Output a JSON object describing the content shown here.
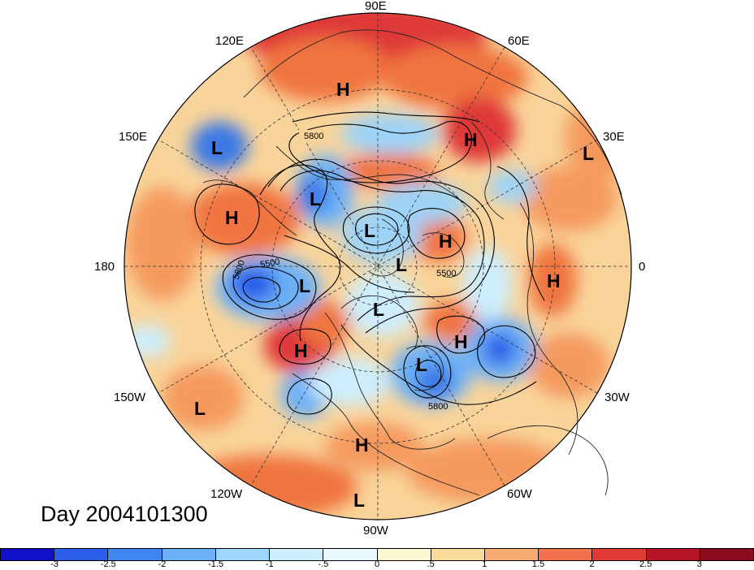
{
  "title": "Day 2004101300",
  "longitude_labels": {
    "lon_90e": "90E",
    "lon_60e": "60E",
    "lon_30e": "30E",
    "lon_0": "0",
    "lon_30w": "30W",
    "lon_60w": "60W",
    "lon_90w": "90W",
    "lon_120w": "120W",
    "lon_150w": "150W",
    "lon_180": "180",
    "lon_150e": "150E",
    "lon_120e": "120E"
  },
  "pressure_systems": {
    "h_siberia": "H",
    "l_japan": "L",
    "l_europe_east": "L",
    "h_ural": "H",
    "l_okhotsk": "L",
    "h_pacific_west": "H",
    "l_arctic_east": "L",
    "h_scandinavia": "H",
    "l_pole": "L",
    "h_africa": "H",
    "l_aleutian": "L",
    "l_hudson": "L",
    "h_alaska": "H",
    "h_atlantic": "H",
    "l_canada_east": "L",
    "l_pacific_east": "L",
    "h_gulf": "H",
    "l_equatorial": "L"
  },
  "contour_labels": {
    "c5800_asia": "5800",
    "c5800_pacific": "5800",
    "c5500_pacific": "5500",
    "c5500_europe": "5500",
    "c5800_atlantic": "5800"
  },
  "colorbar": {
    "labels": [
      "-3",
      "-2.5",
      "-2",
      "-1.5",
      "-1",
      "-.5",
      "0",
      ".5",
      "1",
      "1.5",
      "2",
      "2.5",
      "3"
    ],
    "colors": [
      "#1010c8",
      "#2a5ee8",
      "#3f86f2",
      "#6cb0f7",
      "#9ed6fb",
      "#cdeefd",
      "#e9f8fe",
      "#fdf7cf",
      "#fbdb9a",
      "#f7ac74",
      "#f1724c",
      "#e03a34",
      "#b51424",
      "#8c0a1e"
    ]
  },
  "colors": {
    "ocean_base": "#f9d49a",
    "warm": "#f0743f",
    "hot": "#df3838",
    "cool": "#9dd3f7",
    "cold": "#3a78e6"
  }
}
